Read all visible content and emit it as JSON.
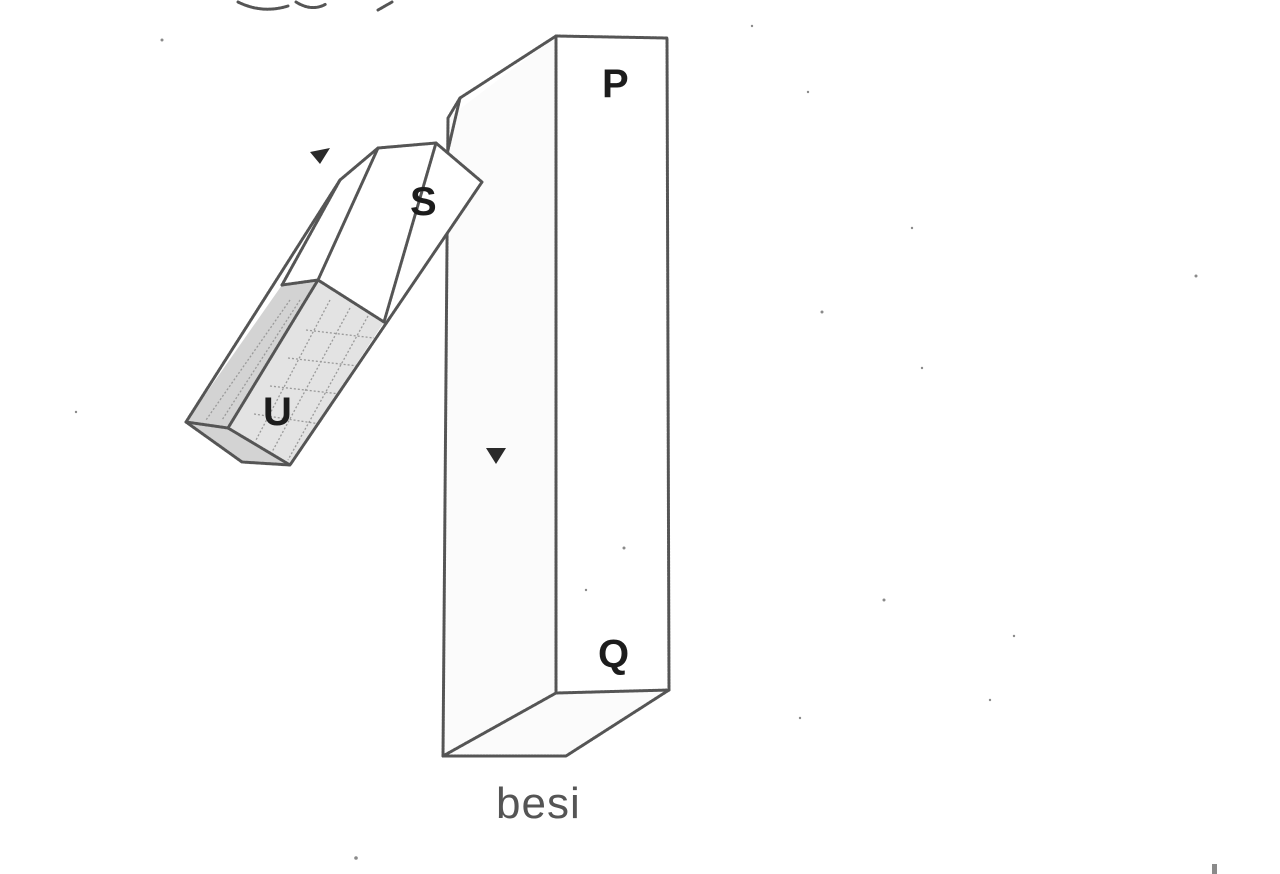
{
  "figure": {
    "iron_bar": {
      "label_top": "P",
      "label_bottom": "Q",
      "caption": "besi"
    },
    "magnet": {
      "pole_upper": "S",
      "pole_lower": "U"
    },
    "motion_arrows": 2
  }
}
